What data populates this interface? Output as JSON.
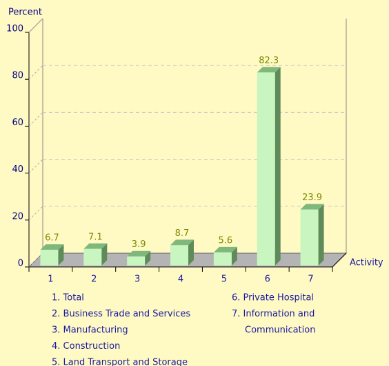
{
  "chart_data": {
    "type": "bar3d",
    "y_label": "Percent",
    "x_label": "Activity",
    "categories": [
      "1",
      "2",
      "3",
      "4",
      "5",
      "6",
      "7"
    ],
    "values": [
      6.7,
      7.1,
      3.9,
      8.7,
      5.6,
      82.3,
      23.9
    ],
    "color": "#c8f5c0",
    "ylim": [
      0,
      100
    ],
    "yticks": [
      0,
      20,
      40,
      60,
      80,
      100
    ],
    "grid": true,
    "legend_left": [
      "1. Total",
      "2. Business Trade and Services",
      "3. Manufacturing",
      "4. Construction",
      "5. Land Transport and Storage"
    ],
    "legend_right": [
      "6. Private Hospital",
      "7. Information and",
      "Communication"
    ]
  }
}
